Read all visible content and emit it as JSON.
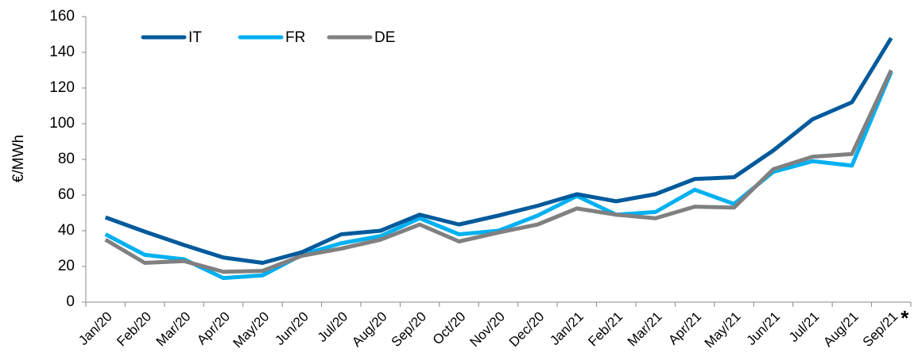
{
  "chart_data": {
    "type": "line",
    "y_label": "€/MWh",
    "categories": [
      "Jan/20",
      "Feb/20",
      "Mar/20",
      "Apr/20",
      "May/20",
      "Jun/20",
      "Jul/20",
      "Aug/20",
      "Sep/20",
      "Oct/20",
      "Nov/20",
      "Dec/20",
      "Jan/21",
      "Feb/21",
      "Mar/21",
      "Apr/21",
      "May/21",
      "Jun/21",
      "Jul/21",
      "Aug/21",
      "Sep/21"
    ],
    "footnote_mark": "*",
    "series": [
      {
        "name": "IT",
        "color": "#005a9c",
        "values": [
          47.5,
          39.5,
          32,
          25,
          22,
          28,
          38,
          40,
          49,
          43.5,
          48.5,
          54,
          60.5,
          56.5,
          60.5,
          69,
          70,
          85,
          102.5,
          112,
          148
        ]
      },
      {
        "name": "FR",
        "color": "#00b0f0",
        "values": [
          38,
          26.5,
          24,
          13.5,
          15,
          26.5,
          33,
          37,
          47,
          38,
          40,
          48.5,
          59.5,
          49,
          50.5,
          63,
          55,
          73,
          79,
          76.5,
          129
        ]
      },
      {
        "name": "DE",
        "color": "#808080",
        "values": [
          35,
          22,
          23,
          17,
          17.5,
          26,
          30,
          35,
          43.5,
          34,
          39,
          43.5,
          52.5,
          49,
          47,
          53.5,
          53,
          74.5,
          81.5,
          83,
          130
        ]
      }
    ],
    "ylim": [
      0,
      160
    ],
    "yticks": [
      0,
      20,
      40,
      60,
      80,
      100,
      120,
      140,
      160
    ],
    "grid": false,
    "legend": "top-left"
  }
}
